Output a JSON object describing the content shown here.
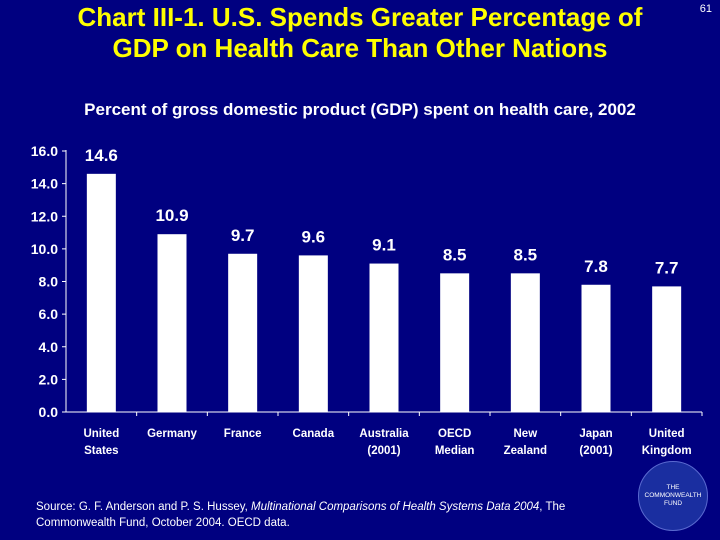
{
  "slide_number": "61",
  "title_line1": "Chart III-1. U.S. Spends Greater Percentage of",
  "title_line2": "GDP on Health Care Than Other Nations",
  "source": {
    "prefix": "Source: G. F. Anderson and P. S. Hussey, ",
    "italic": "Multinational Comparisons of Health Systems Data 2004",
    "suffix": ", The Commonwealth Fund, October 2004. OECD data."
  },
  "logo": {
    "line1": "THE",
    "line2": "COMMONWEALTH",
    "line3": "FUND"
  },
  "colors": {
    "background": "#000080",
    "bar": "#ffffff",
    "title": "#ffff00"
  },
  "chart_data": {
    "type": "bar",
    "title": "Percent of gross domestic product (GDP) spent on health care, 2002",
    "xlabel": "",
    "ylabel": "",
    "ylim": [
      0,
      16
    ],
    "yticks": [
      "0.0",
      "2.0",
      "4.0",
      "6.0",
      "8.0",
      "10.0",
      "12.0",
      "14.0",
      "16.0"
    ],
    "grid": false,
    "categories": [
      [
        "United",
        "States"
      ],
      [
        "Germany"
      ],
      [
        "France"
      ],
      [
        "Canada"
      ],
      [
        "Australia",
        "(2001)"
      ],
      [
        "OECD",
        "Median"
      ],
      [
        "New",
        "Zealand"
      ],
      [
        "Japan",
        "(2001)"
      ],
      [
        "United",
        "Kingdom"
      ]
    ],
    "values": [
      14.6,
      10.9,
      9.7,
      9.6,
      9.1,
      8.5,
      8.5,
      7.8,
      7.7
    ],
    "labels": [
      "14.6",
      "10.9",
      "9.7",
      "9.6",
      "9.1",
      "8.5",
      "8.5",
      "7.8",
      "7.7"
    ]
  }
}
